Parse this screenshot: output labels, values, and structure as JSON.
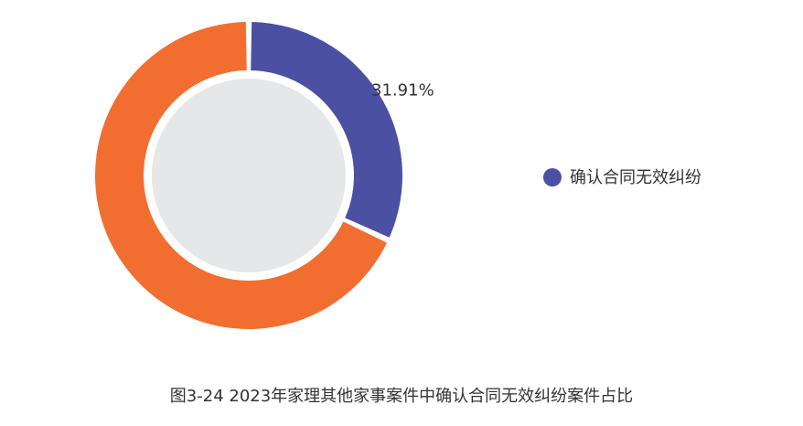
{
  "chart_data": {
    "type": "pie",
    "style": "donut",
    "slices": [
      {
        "label": "确认合同无效纠纷",
        "value": 31.91,
        "display": "31.91%",
        "color": "#4B50A3"
      },
      {
        "label": "",
        "value": 68.09,
        "display": "",
        "color": "#F26E30"
      }
    ],
    "center_color": "#E6E7E8",
    "legend": {
      "placement": "right",
      "entries": [
        {
          "label": "确认合同无效纠纷",
          "color": "#4B50A3"
        }
      ]
    }
  },
  "caption": "图3-24  2023年家理其他家事案件中确认合同无效纠纷案件占比"
}
